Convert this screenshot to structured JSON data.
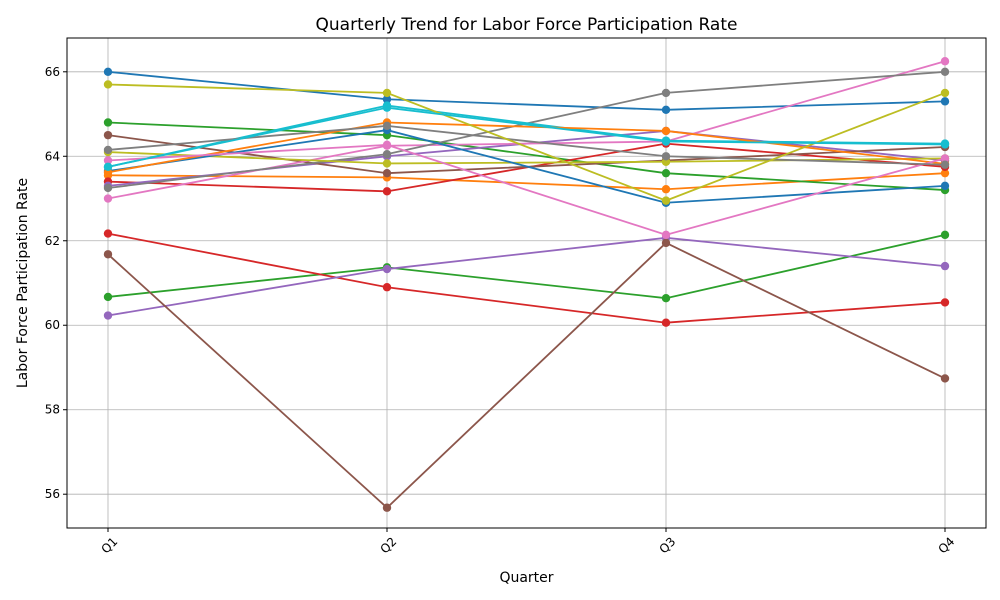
{
  "chart_data": {
    "type": "line",
    "title": "Quarterly Trend for Labor Force Participation Rate",
    "xlabel": "Quarter",
    "ylabel": "Labor Force Participation Rate",
    "categories": [
      "Q1",
      "Q2",
      "Q3",
      "Q4"
    ],
    "ylim": [
      55.2,
      66.8
    ],
    "yticks": [
      56,
      58,
      60,
      62,
      64,
      66
    ],
    "grid": true,
    "markers": true,
    "series": [
      {
        "color": "#1f77b4",
        "values": [
          66.0,
          65.35,
          65.1,
          65.3
        ]
      },
      {
        "color": "#ff7f0e",
        "values": [
          63.55,
          63.5,
          63.22,
          63.6
        ]
      },
      {
        "color": "#2ca02c",
        "values": [
          64.8,
          64.5,
          63.6,
          63.2
        ]
      },
      {
        "color": "#d62728",
        "values": [
          63.4,
          63.17,
          64.3,
          63.75
        ]
      },
      {
        "color": "#9467bd",
        "values": [
          63.3,
          64.0,
          64.6,
          63.9
        ]
      },
      {
        "color": "#8c564b",
        "values": [
          64.5,
          63.6,
          63.9,
          64.22
        ]
      },
      {
        "color": "#e377c2",
        "values": [
          63.0,
          64.25,
          64.35,
          66.25
        ]
      },
      {
        "color": "#7f7f7f",
        "values": [
          63.25,
          64.05,
          65.5,
          66.0
        ]
      },
      {
        "color": "#bcbd22",
        "values": [
          64.1,
          63.83,
          63.87,
          63.95
        ]
      },
      {
        "color": "#17becf",
        "values": [
          63.75,
          65.2,
          64.37,
          64.3
        ]
      },
      {
        "color": "#1f77b4",
        "values": [
          63.65,
          64.62,
          62.9,
          63.3
        ]
      },
      {
        "color": "#ff7f0e",
        "values": [
          63.62,
          64.8,
          64.6,
          63.82
        ]
      },
      {
        "color": "#2ca02c",
        "values": [
          60.67,
          61.37,
          60.64,
          62.14
        ]
      },
      {
        "color": "#d62728",
        "values": [
          62.17,
          60.9,
          60.06,
          60.54
        ]
      },
      {
        "color": "#9467bd",
        "values": [
          60.23,
          61.33,
          62.07,
          61.4
        ]
      },
      {
        "color": "#8c564b",
        "values": [
          61.68,
          55.68,
          61.95,
          58.74
        ]
      },
      {
        "color": "#e377c2",
        "values": [
          63.9,
          64.27,
          62.14,
          63.95
        ]
      },
      {
        "color": "#7f7f7f",
        "values": [
          64.15,
          64.72,
          64.0,
          63.8
        ]
      },
      {
        "color": "#bcbd22",
        "values": [
          65.7,
          65.5,
          62.95,
          65.5
        ]
      },
      {
        "color": "#17becf",
        "values": [
          63.75,
          65.15,
          64.35,
          64.28
        ]
      }
    ]
  }
}
